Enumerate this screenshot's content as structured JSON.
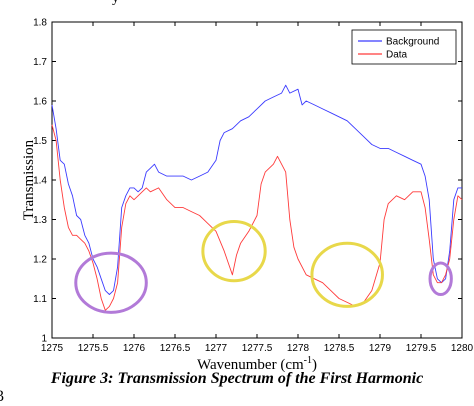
{
  "caption": "Figure 3: Transmission Spectrum of the First Harmonic",
  "page_number_fragment": "3",
  "top_text_fragment": "y",
  "colors": {
    "background_series": "#3b3bff",
    "data_series": "#ff3b3b",
    "purple_circle": "#b27ad8",
    "yellow_circle": "#e8d84a"
  },
  "chart_data": {
    "type": "line",
    "xlabel": "Wavenumber (cm",
    "xlabel_sup": "-1",
    "xlabel_tail": ")",
    "ylabel": "Transmission",
    "xlim": [
      1275,
      1280
    ],
    "ylim": [
      1.0,
      1.8
    ],
    "xticks": [
      "1275",
      "1275.5",
      "1276",
      "1276.5",
      "1277",
      "1277.5",
      "1278",
      "1278.5",
      "1279",
      "1279.5",
      "1280"
    ],
    "yticks": [
      "1",
      "1.1",
      "1.2",
      "1.3",
      "1.4",
      "1.5",
      "1.6",
      "1.7",
      "1.8"
    ],
    "legend_position": "top-right",
    "series": [
      {
        "name": "Background",
        "color": "#3b3bff",
        "points": [
          [
            1275.0,
            1.59
          ],
          [
            1275.05,
            1.53
          ],
          [
            1275.1,
            1.45
          ],
          [
            1275.15,
            1.44
          ],
          [
            1275.2,
            1.39
          ],
          [
            1275.25,
            1.36
          ],
          [
            1275.3,
            1.31
          ],
          [
            1275.35,
            1.3
          ],
          [
            1275.4,
            1.26
          ],
          [
            1275.45,
            1.24
          ],
          [
            1275.5,
            1.2
          ],
          [
            1275.55,
            1.18
          ],
          [
            1275.6,
            1.15
          ],
          [
            1275.65,
            1.12
          ],
          [
            1275.7,
            1.11
          ],
          [
            1275.75,
            1.12
          ],
          [
            1275.8,
            1.18
          ],
          [
            1275.85,
            1.33
          ],
          [
            1275.9,
            1.36
          ],
          [
            1275.95,
            1.38
          ],
          [
            1276.0,
            1.38
          ],
          [
            1276.05,
            1.37
          ],
          [
            1276.1,
            1.38
          ],
          [
            1276.15,
            1.42
          ],
          [
            1276.2,
            1.43
          ],
          [
            1276.25,
            1.44
          ],
          [
            1276.3,
            1.42
          ],
          [
            1276.4,
            1.41
          ],
          [
            1276.5,
            1.41
          ],
          [
            1276.6,
            1.41
          ],
          [
            1276.7,
            1.4
          ],
          [
            1276.8,
            1.41
          ],
          [
            1276.9,
            1.42
          ],
          [
            1277.0,
            1.45
          ],
          [
            1277.05,
            1.5
          ],
          [
            1277.1,
            1.52
          ],
          [
            1277.2,
            1.53
          ],
          [
            1277.3,
            1.55
          ],
          [
            1277.4,
            1.56
          ],
          [
            1277.5,
            1.58
          ],
          [
            1277.6,
            1.6
          ],
          [
            1277.7,
            1.61
          ],
          [
            1277.8,
            1.62
          ],
          [
            1277.85,
            1.64
          ],
          [
            1277.9,
            1.62
          ],
          [
            1278.0,
            1.63
          ],
          [
            1278.05,
            1.59
          ],
          [
            1278.1,
            1.6
          ],
          [
            1278.2,
            1.59
          ],
          [
            1278.3,
            1.58
          ],
          [
            1278.4,
            1.57
          ],
          [
            1278.5,
            1.56
          ],
          [
            1278.6,
            1.55
          ],
          [
            1278.7,
            1.53
          ],
          [
            1278.8,
            1.51
          ],
          [
            1278.9,
            1.49
          ],
          [
            1279.0,
            1.48
          ],
          [
            1279.1,
            1.48
          ],
          [
            1279.2,
            1.47
          ],
          [
            1279.3,
            1.46
          ],
          [
            1279.4,
            1.45
          ],
          [
            1279.5,
            1.44
          ],
          [
            1279.55,
            1.41
          ],
          [
            1279.6,
            1.35
          ],
          [
            1279.65,
            1.2
          ],
          [
            1279.7,
            1.15
          ],
          [
            1279.75,
            1.14
          ],
          [
            1279.8,
            1.15
          ],
          [
            1279.85,
            1.22
          ],
          [
            1279.9,
            1.35
          ],
          [
            1279.95,
            1.38
          ],
          [
            1280.0,
            1.38
          ]
        ]
      },
      {
        "name": "Data",
        "color": "#ff3b3b",
        "points": [
          [
            1275.0,
            1.54
          ],
          [
            1275.05,
            1.5
          ],
          [
            1275.1,
            1.4
          ],
          [
            1275.15,
            1.33
          ],
          [
            1275.2,
            1.28
          ],
          [
            1275.25,
            1.26
          ],
          [
            1275.3,
            1.26
          ],
          [
            1275.35,
            1.25
          ],
          [
            1275.4,
            1.24
          ],
          [
            1275.45,
            1.22
          ],
          [
            1275.5,
            1.19
          ],
          [
            1275.55,
            1.15
          ],
          [
            1275.6,
            1.1
          ],
          [
            1275.65,
            1.07
          ],
          [
            1275.7,
            1.08
          ],
          [
            1275.75,
            1.1
          ],
          [
            1275.8,
            1.14
          ],
          [
            1275.85,
            1.28
          ],
          [
            1275.9,
            1.34
          ],
          [
            1275.95,
            1.36
          ],
          [
            1276.0,
            1.35
          ],
          [
            1276.05,
            1.36
          ],
          [
            1276.1,
            1.37
          ],
          [
            1276.15,
            1.38
          ],
          [
            1276.2,
            1.37
          ],
          [
            1276.3,
            1.38
          ],
          [
            1276.4,
            1.35
          ],
          [
            1276.5,
            1.33
          ],
          [
            1276.6,
            1.33
          ],
          [
            1276.7,
            1.32
          ],
          [
            1276.8,
            1.31
          ],
          [
            1276.9,
            1.29
          ],
          [
            1277.0,
            1.27
          ],
          [
            1277.1,
            1.22
          ],
          [
            1277.15,
            1.19
          ],
          [
            1277.2,
            1.16
          ],
          [
            1277.25,
            1.21
          ],
          [
            1277.3,
            1.24
          ],
          [
            1277.4,
            1.27
          ],
          [
            1277.5,
            1.31
          ],
          [
            1277.55,
            1.39
          ],
          [
            1277.6,
            1.42
          ],
          [
            1277.7,
            1.44
          ],
          [
            1277.75,
            1.46
          ],
          [
            1277.8,
            1.44
          ],
          [
            1277.85,
            1.42
          ],
          [
            1277.9,
            1.3
          ],
          [
            1277.95,
            1.23
          ],
          [
            1278.0,
            1.2
          ],
          [
            1278.1,
            1.16
          ],
          [
            1278.2,
            1.15
          ],
          [
            1278.3,
            1.14
          ],
          [
            1278.4,
            1.12
          ],
          [
            1278.5,
            1.1
          ],
          [
            1278.6,
            1.09
          ],
          [
            1278.7,
            1.08
          ],
          [
            1278.8,
            1.09
          ],
          [
            1278.9,
            1.12
          ],
          [
            1279.0,
            1.19
          ],
          [
            1279.05,
            1.3
          ],
          [
            1279.1,
            1.34
          ],
          [
            1279.2,
            1.36
          ],
          [
            1279.3,
            1.35
          ],
          [
            1279.4,
            1.37
          ],
          [
            1279.5,
            1.37
          ],
          [
            1279.55,
            1.33
          ],
          [
            1279.6,
            1.25
          ],
          [
            1279.65,
            1.16
          ],
          [
            1279.7,
            1.14
          ],
          [
            1279.75,
            1.14
          ],
          [
            1279.8,
            1.16
          ],
          [
            1279.85,
            1.2
          ],
          [
            1279.9,
            1.3
          ],
          [
            1279.95,
            1.36
          ],
          [
            1280.0,
            1.35
          ]
        ]
      }
    ],
    "annotations": [
      {
        "shape": "circle",
        "color": "purple",
        "center": [
          1275.72,
          1.14
        ],
        "radius_x": 0.43,
        "radius_y": 0.075
      },
      {
        "shape": "circle",
        "color": "yellow",
        "center": [
          1277.22,
          1.22
        ],
        "radius_x": 0.38,
        "radius_y": 0.075
      },
      {
        "shape": "circle",
        "color": "yellow",
        "center": [
          1278.6,
          1.16
        ],
        "radius_x": 0.43,
        "radius_y": 0.08
      },
      {
        "shape": "circle",
        "color": "purple",
        "center": [
          1279.74,
          1.15
        ],
        "radius_x": 0.13,
        "radius_y": 0.04
      }
    ]
  }
}
